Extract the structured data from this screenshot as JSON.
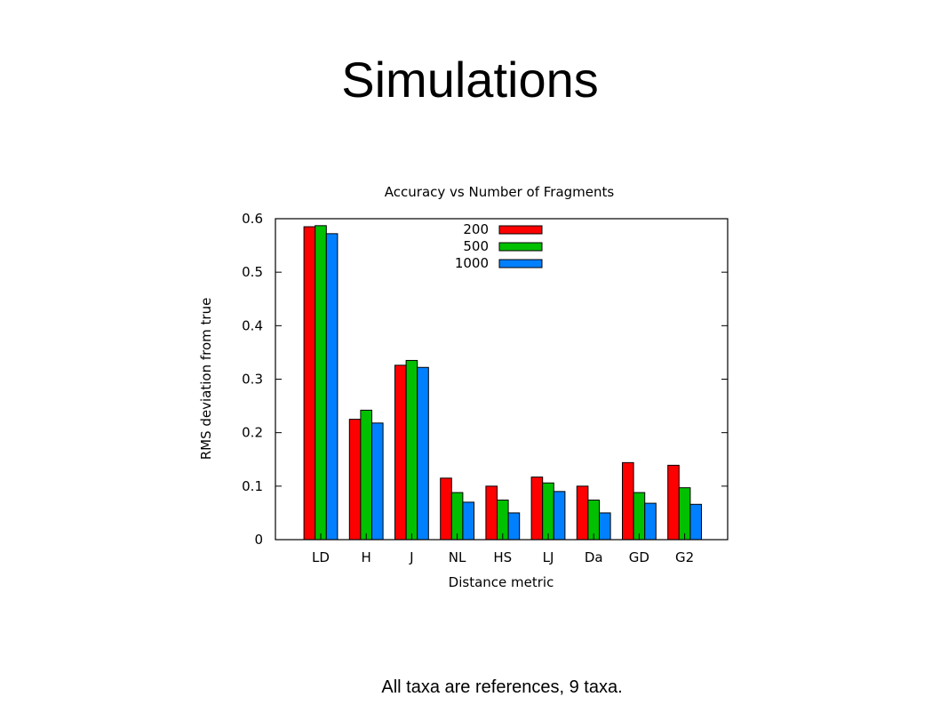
{
  "slide": {
    "title": "Simulations",
    "caption": "All taxa are references, 9 taxa."
  },
  "chart_data": {
    "type": "bar",
    "title": "Accuracy vs Number of Fragments",
    "xlabel": "Distance metric",
    "ylabel": "RMS deviation from true",
    "categories": [
      "LD",
      "H",
      "J",
      "NL",
      "HS",
      "LJ",
      "Da",
      "GD",
      "G2"
    ],
    "ylim": [
      0,
      0.6
    ],
    "yticks": [
      0,
      0.1,
      0.2,
      0.3,
      0.4,
      0.5,
      0.6
    ],
    "ytick_labels": [
      "0",
      "0.1",
      "0.2",
      "0.3",
      "0.4",
      "0.5",
      "0.6"
    ],
    "legend_position": "top-center",
    "grid": false,
    "series": [
      {
        "name": "200",
        "color": "#ff0000",
        "values": [
          0.585,
          0.225,
          0.326,
          0.115,
          0.1,
          0.117,
          0.1,
          0.144,
          0.139
        ]
      },
      {
        "name": "500",
        "color": "#00c000",
        "values": [
          0.587,
          0.242,
          0.335,
          0.088,
          0.074,
          0.106,
          0.074,
          0.088,
          0.097
        ]
      },
      {
        "name": "1000",
        "color": "#0080ff",
        "values": [
          0.572,
          0.218,
          0.322,
          0.07,
          0.05,
          0.09,
          0.05,
          0.068,
          0.066
        ]
      }
    ]
  }
}
